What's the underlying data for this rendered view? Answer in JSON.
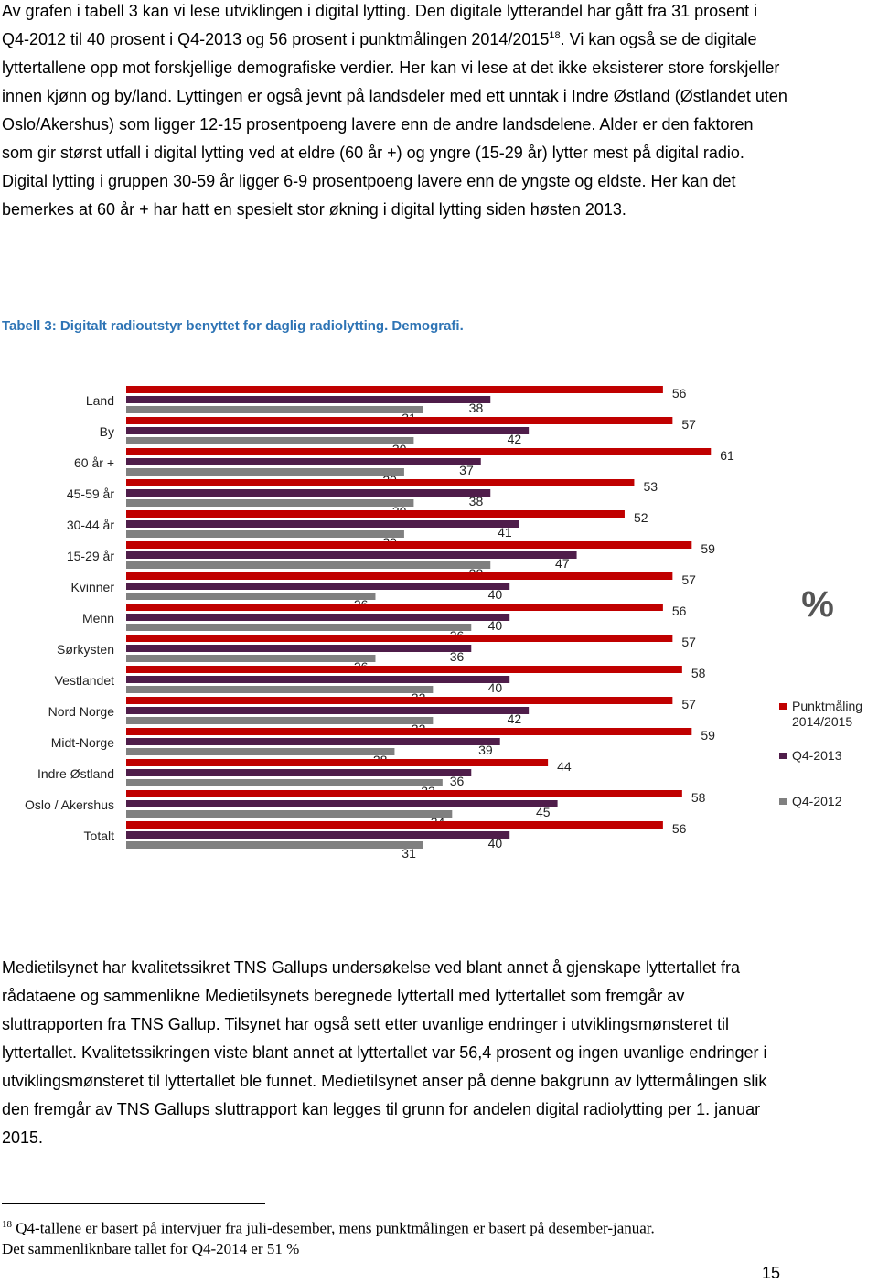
{
  "paragraph_1": {
    "before": "Av grafen i tabell 3 kan vi lese utviklingen i digital lytting. Den digitale lytterandel har gått fra 31 prosent i Q4-2012 til 40 prosent i Q4-2013 og 56 prosent i punktmålingen 2014/2015",
    "footnote_ref": "18",
    "after": ". Vi kan også se de digitale lyttertallene opp mot forskjellige demografiske verdier. Her kan vi lese at det ikke eksisterer store forskjeller innen kjønn og by/land. Lyttingen er også jevnt på landsdeler med ett unntak i Indre Østland (Østlandet uten Oslo/Akershus) som ligger 12-15 prosentpoeng lavere enn de andre landsdelene. Alder er den faktoren som gir størst utfall i digital lytting ved at eldre (60 år +) og yngre (15-29 år) lytter mest på digital radio. Digital lytting i gruppen 30-59 år ligger 6-9 prosentpoeng lavere enn de yngste og eldste. Her kan det bemerkes at 60 år + har hatt en spesielt stor økning i digital lytting siden høsten 2013."
  },
  "table_caption": "Tabell 3: Digitalt radioutstyr benyttet for daglig radiolytting. Demografi.",
  "chart_data": {
    "type": "bar",
    "orientation": "horizontal",
    "unit_label": "%",
    "categories": [
      "Land",
      "By",
      "60 år +",
      "45-59 år",
      "30-44 år",
      "15-29 år",
      "Kvinner",
      "Menn",
      "Sørkysten",
      "Vestlandet",
      "Nord Norge",
      "Midt-Norge",
      "Indre Østland",
      "Oslo / Akershus",
      "Totalt"
    ],
    "series": [
      {
        "name": "Punktmåling 2014/2015",
        "color": "#c00000",
        "values": [
          56,
          57,
          61,
          53,
          52,
          59,
          57,
          56,
          57,
          58,
          57,
          59,
          44,
          58,
          56
        ]
      },
      {
        "name": "Q4-2013",
        "color": "#4f1d4a",
        "values": [
          38,
          42,
          37,
          38,
          41,
          47,
          40,
          40,
          36,
          40,
          42,
          39,
          36,
          45,
          40
        ]
      },
      {
        "name": "Q4-2012",
        "color": "#808080",
        "values": [
          31,
          30,
          29,
          30,
          29,
          38,
          26,
          36,
          26,
          32,
          32,
          28,
          33,
          34,
          31
        ]
      }
    ]
  },
  "paragraph_2": "Medietilsynet har kvalitetssikret TNS Gallups undersøkelse ved blant annet å gjenskape lyttertallet fra rådataene og sammenlikne Medietilsynets beregnede lyttertall med lyttertallet som fremgår av sluttrapporten fra TNS Gallup. Tilsynet har også sett etter uvanlige endringer i utviklingsmønsteret til lyttertallet. Kvalitetssikringen viste blant annet at lyttertallet var 56,4 prosent og ingen uvanlige endringer i utviklingsmønsteret til lyttertallet ble funnet. Medietilsynet anser på denne bakgrunn av lyttermålingen slik den fremgår av TNS Gallups sluttrapport kan legges til grunn for andelen digital radiolytting per 1. januar 2015.",
  "footnote": {
    "number": "18",
    "line_1": "Q4-tallene er basert på intervjuer fra juli-desember, mens punktmålingen er basert på desember-januar.",
    "line_2": "Det sammenliknbare tallet for Q4-2014 er 51 %"
  },
  "page_number": "15"
}
